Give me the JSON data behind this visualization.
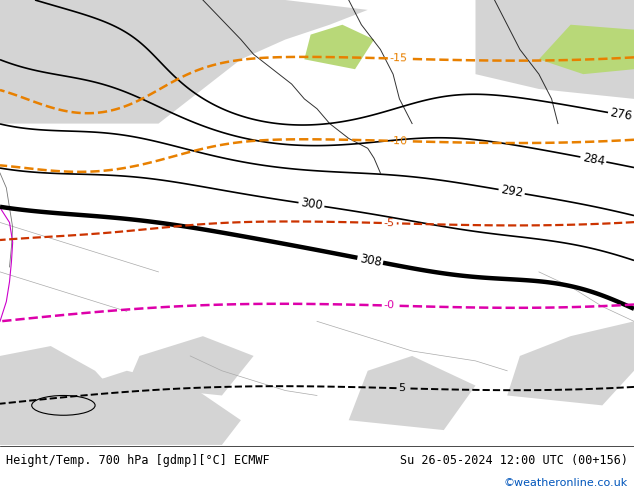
{
  "title_left": "Height/Temp. 700 hPa [gdmp][°C] ECMWF",
  "title_right": "Su 26-05-2024 12:00 UTC (00+156)",
  "credit": "©weatheronline.co.uk",
  "bg_map_color": "#c8e6a0",
  "figsize": [
    6.34,
    4.9
  ],
  "dpi": 100
}
